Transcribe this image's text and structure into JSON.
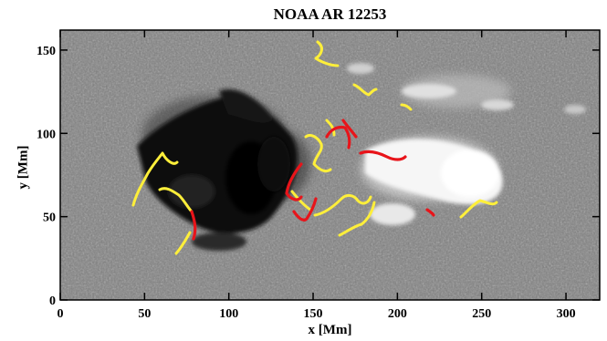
{
  "figure": {
    "title": "NOAA AR 12253",
    "xlabel": "x [Mm]",
    "ylabel": "y [Mm]",
    "x_ticks": [
      0,
      50,
      100,
      150,
      200,
      250,
      300
    ],
    "y_ticks": [
      0,
      50,
      100,
      150
    ],
    "x_range": [
      0,
      320
    ],
    "y_range": [
      0,
      162
    ],
    "image": "solar magnetogram (grayscale) with yellow and red contour lines",
    "colors": {
      "background_gray": "#808080",
      "positive_polarity": "#ffffff",
      "negative_polarity": "#000000",
      "contour_yellow": "#ffef3a",
      "contour_red": "#e8141a"
    }
  }
}
